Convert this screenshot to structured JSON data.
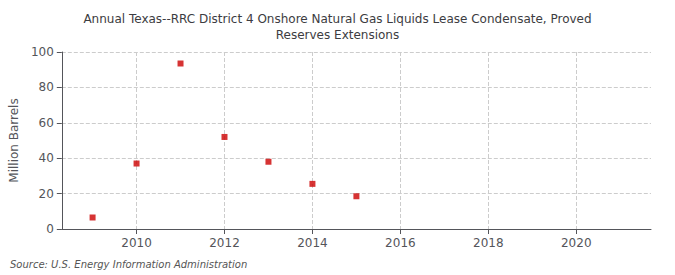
{
  "chart_data": {
    "type": "scatter",
    "title": "Annual Texas--RRC District 4 Onshore Natural Gas Liquids Lease Condensate, Proved\nReserves Extensions",
    "ylabel": "Million Barrels",
    "source": "Source: U.S. Energy Information Administration",
    "x": [
      2009,
      2010,
      2011,
      2012,
      2013,
      2014,
      2015
    ],
    "values": [
      6.5,
      37.0,
      93.5,
      52.0,
      38.0,
      25.5,
      18.5
    ],
    "color": "#cc0000",
    "marker": "square",
    "xlim": [
      2008.3,
      2021.7
    ],
    "ylim": [
      0,
      100
    ],
    "xticks": [
      2010,
      2012,
      2014,
      2016,
      2018,
      2020
    ],
    "yticks": [
      0,
      20,
      40,
      60,
      80,
      100
    ],
    "grid": true
  }
}
